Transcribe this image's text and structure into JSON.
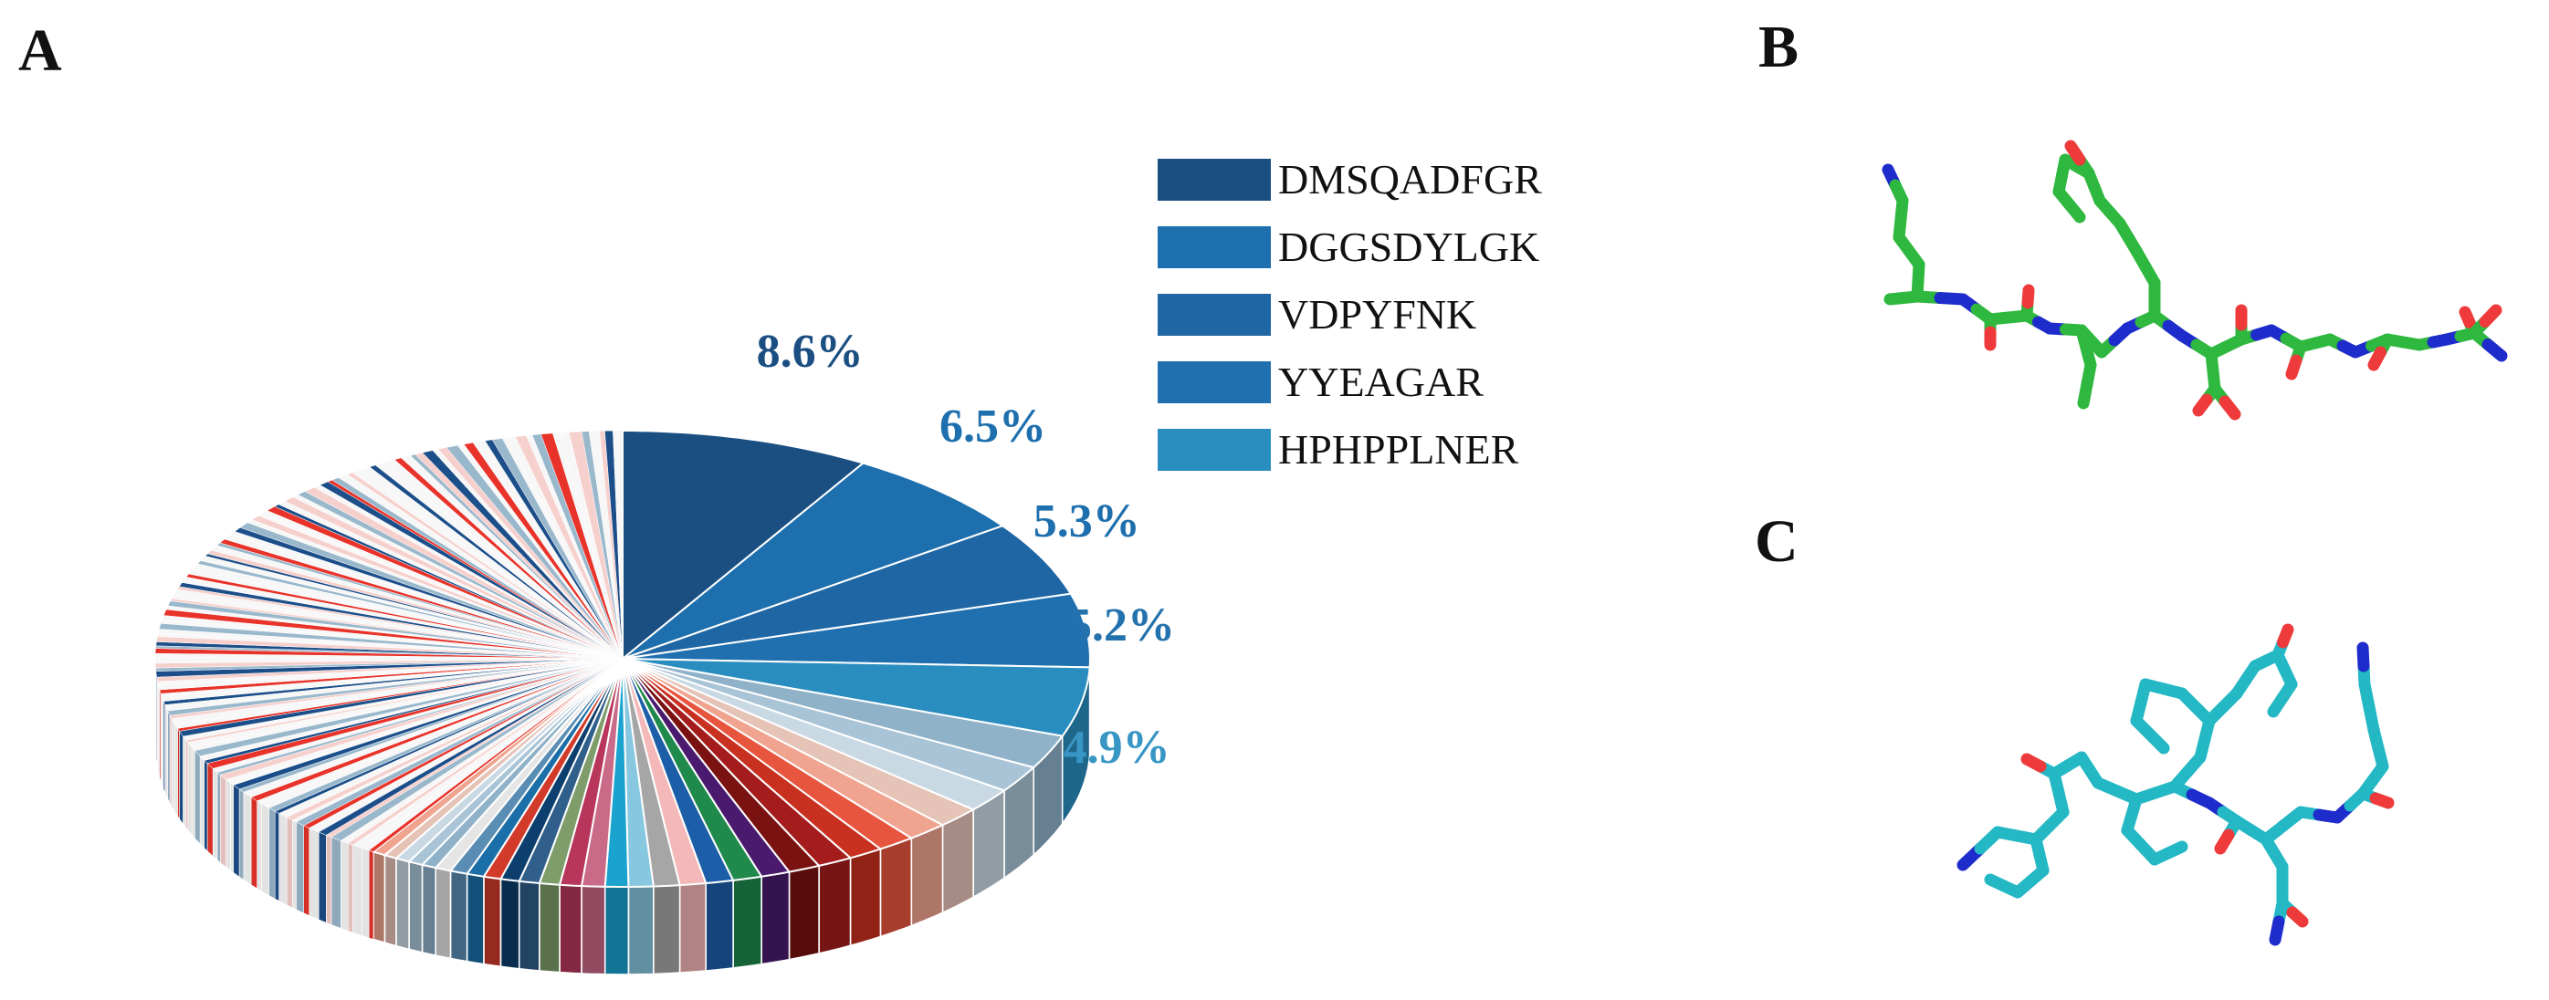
{
  "panels": {
    "a": "A",
    "b": "B",
    "c": "C"
  },
  "chart_data": {
    "type": "pie",
    "style": "3d",
    "title": "",
    "labeled_slices": [
      {
        "label": "DMSQADFGR",
        "value": 8.6,
        "value_label": "8.6%",
        "color": "#1b4f82"
      },
      {
        "label": "DGGSDYLGK",
        "value": 6.5,
        "value_label": "6.5%",
        "color": "#1d6fae"
      },
      {
        "label": "VDPYFNK",
        "value": 5.3,
        "value_label": "5.3%",
        "color": "#1f67a4"
      },
      {
        "label": "YYEAGAR",
        "value": 5.2,
        "value_label": "5.2%",
        "color": "#2070b0"
      },
      {
        "label": "HPHPPLNER",
        "value": 4.9,
        "value_label": "4.9%",
        "color": "#2a8dbf"
      }
    ],
    "other_slices_total": 69.5,
    "other_slices_note": "many small unlabeled slices in blue, grey, red and green tones",
    "legend_position": "top-right"
  },
  "molecules": {
    "b": {
      "color": "#2fb83f"
    },
    "c": {
      "color": "#23b8c4"
    }
  },
  "atom_colors": {
    "nitrogen": "#1e2ccc",
    "oxygen": "#ee3a3a"
  }
}
